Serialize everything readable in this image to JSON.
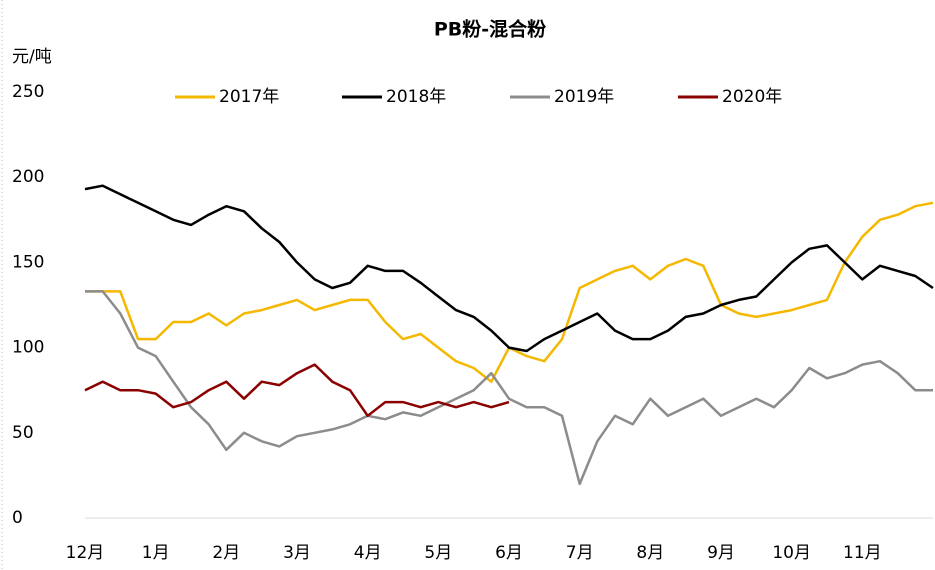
{
  "chart_data": {
    "type": "line",
    "title": "PB粉-混合粉",
    "y_label": "元/吨",
    "categories": [
      "12月",
      null,
      null,
      null,
      "1月",
      null,
      null,
      null,
      "2月",
      null,
      null,
      null,
      "3月",
      null,
      null,
      null,
      "4月",
      null,
      null,
      null,
      "5月",
      null,
      null,
      null,
      "6月",
      null,
      null,
      null,
      "7月",
      null,
      null,
      null,
      "8月",
      null,
      null,
      null,
      "9月",
      null,
      null,
      null,
      "10月",
      null,
      null,
      null,
      "11月",
      null,
      null,
      null,
      null
    ],
    "ylim": [
      0,
      250
    ],
    "yticks": [
      0,
      50,
      100,
      150,
      200,
      250
    ],
    "grid": false,
    "legend": "top",
    "series": [
      {
        "name": "2017年",
        "color": "#f5b800",
        "values": [
          133,
          133,
          133,
          105,
          105,
          115,
          115,
          120,
          113,
          120,
          122,
          125,
          128,
          122,
          125,
          128,
          128,
          115,
          105,
          108,
          100,
          92,
          88,
          80,
          100,
          95,
          92,
          105,
          135,
          140,
          145,
          148,
          140,
          148,
          152,
          148,
          125,
          120,
          118,
          120,
          122,
          125,
          128,
          150,
          165,
          175,
          178,
          183,
          185
        ]
      },
      {
        "name": "2018年",
        "color": "#000000",
        "values": [
          193,
          195,
          190,
          185,
          180,
          175,
          172,
          178,
          183,
          180,
          170,
          162,
          150,
          140,
          135,
          138,
          148,
          145,
          145,
          138,
          130,
          122,
          118,
          110,
          100,
          98,
          105,
          110,
          115,
          120,
          110,
          105,
          105,
          110,
          118,
          120,
          125,
          128,
          130,
          140,
          150,
          158,
          160,
          150,
          140,
          148,
          145,
          142,
          135
        ]
      },
      {
        "name": "2019年",
        "color": "#8c8c8c",
        "values": [
          133,
          133,
          120,
          100,
          95,
          80,
          65,
          55,
          40,
          50,
          45,
          42,
          48,
          50,
          52,
          55,
          60,
          58,
          62,
          60,
          65,
          70,
          75,
          85,
          70,
          65,
          65,
          60,
          20,
          45,
          60,
          55,
          70,
          60,
          65,
          70,
          60,
          65,
          70,
          65,
          75,
          88,
          82,
          85,
          90,
          92,
          85,
          75,
          75
        ]
      },
      {
        "name": "2020年",
        "color": "#8b0000",
        "values": [
          75,
          80,
          75,
          75,
          73,
          65,
          68,
          75,
          80,
          70,
          80,
          78,
          85,
          90,
          80,
          75,
          60,
          68,
          68,
          65,
          68,
          65,
          68,
          65,
          68,
          null,
          null,
          null,
          null,
          null,
          null,
          null,
          null,
          null,
          null,
          null,
          null,
          null,
          null,
          null,
          null,
          null,
          null,
          null,
          null,
          null,
          null,
          null,
          null
        ]
      }
    ]
  }
}
